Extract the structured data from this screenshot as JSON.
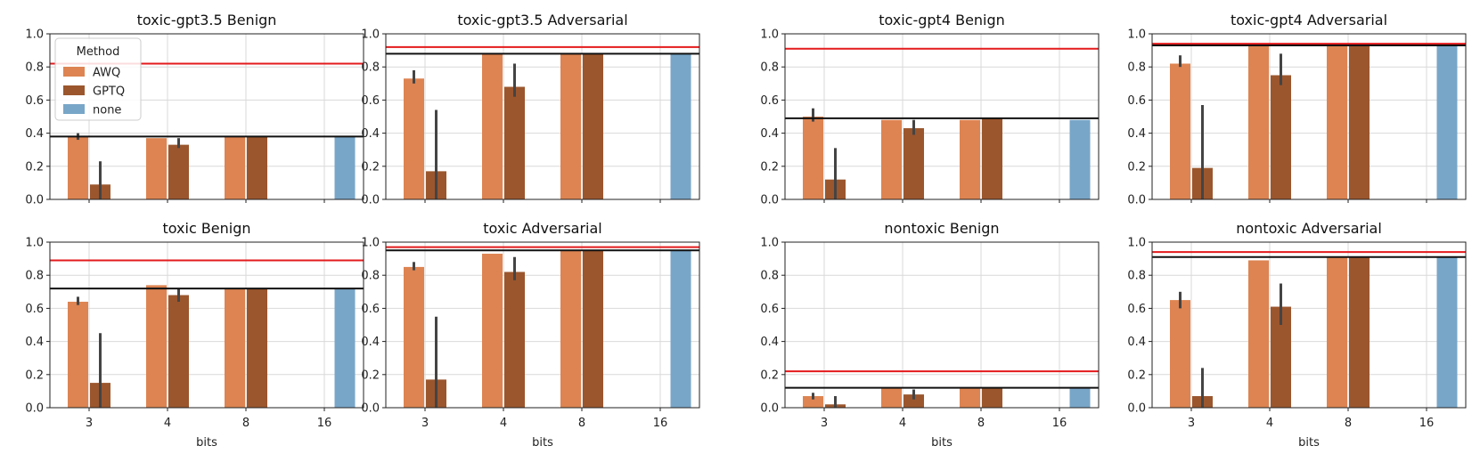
{
  "legend": {
    "title": "Method",
    "entries": [
      {
        "name": "AWQ",
        "color": "#dd8452"
      },
      {
        "name": "GPTQ",
        "color": "#9b562d"
      },
      {
        "name": "none",
        "color": "#78a6c8"
      }
    ]
  },
  "colors": {
    "red_line": "#e41a1c",
    "black_line": "#111111",
    "grid": "#d9d9d9",
    "errbar": "#444444"
  },
  "chart_data": [
    {
      "type": "bar",
      "title": "toxic-gpt3.5 Benign",
      "categories": [
        "3",
        "4",
        "8",
        "16"
      ],
      "xlabel": "",
      "ylabel": "",
      "ylim": [
        0,
        1
      ],
      "yticks": [
        "0.0",
        "0.2",
        "0.4",
        "0.6",
        "0.8",
        "1.0"
      ],
      "series": [
        {
          "name": "AWQ",
          "values": [
            0.38,
            0.37,
            0.38,
            null
          ],
          "err": [
            [
              0.36,
              0.4
            ],
            null,
            null,
            null
          ]
        },
        {
          "name": "GPTQ",
          "values": [
            0.09,
            0.33,
            0.38,
            null
          ],
          "err": [
            [
              0.0,
              0.23
            ],
            [
              0.31,
              0.37
            ],
            null,
            null
          ]
        },
        {
          "name": "none",
          "values": [
            null,
            null,
            null,
            0.38
          ],
          "err": [
            null,
            null,
            null,
            null
          ]
        }
      ],
      "ref_lines": {
        "red": 0.82,
        "black": 0.38
      }
    },
    {
      "type": "bar",
      "title": "toxic-gpt3.5 Adversarial",
      "categories": [
        "3",
        "4",
        "8",
        "16"
      ],
      "xlabel": "",
      "ylabel": "",
      "ylim": [
        0,
        1
      ],
      "yticks": [
        "0.0",
        "0.2",
        "0.4",
        "0.6",
        "0.8",
        "1.0"
      ],
      "series": [
        {
          "name": "AWQ",
          "values": [
            0.73,
            0.88,
            0.88,
            null
          ],
          "err": [
            [
              0.7,
              0.78
            ],
            null,
            null,
            null
          ]
        },
        {
          "name": "GPTQ",
          "values": [
            0.17,
            0.68,
            0.88,
            null
          ],
          "err": [
            [
              0.0,
              0.54
            ],
            [
              0.62,
              0.82
            ],
            null,
            null
          ]
        },
        {
          "name": "none",
          "values": [
            null,
            null,
            null,
            0.88
          ],
          "err": [
            null,
            null,
            null,
            null
          ]
        }
      ],
      "ref_lines": {
        "red": 0.92,
        "black": 0.88
      }
    },
    {
      "type": "bar",
      "title": "toxic-gpt4 Benign",
      "categories": [
        "3",
        "4",
        "8",
        "16"
      ],
      "xlabel": "",
      "ylabel": "",
      "ylim": [
        0,
        1
      ],
      "yticks": [
        "0.0",
        "0.2",
        "0.4",
        "0.6",
        "0.8",
        "1.0"
      ],
      "series": [
        {
          "name": "AWQ",
          "values": [
            0.5,
            0.48,
            0.48,
            null
          ],
          "err": [
            [
              0.47,
              0.55
            ],
            null,
            null,
            null
          ]
        },
        {
          "name": "GPTQ",
          "values": [
            0.12,
            0.43,
            0.49,
            null
          ],
          "err": [
            [
              0.0,
              0.31
            ],
            [
              0.39,
              0.48
            ],
            null,
            null
          ]
        },
        {
          "name": "none",
          "values": [
            null,
            null,
            null,
            0.48
          ],
          "err": [
            null,
            null,
            null,
            null
          ]
        }
      ],
      "ref_lines": {
        "red": 0.91,
        "black": 0.49
      }
    },
    {
      "type": "bar",
      "title": "toxic-gpt4 Adversarial",
      "categories": [
        "3",
        "4",
        "8",
        "16"
      ],
      "xlabel": "",
      "ylabel": "",
      "ylim": [
        0,
        1
      ],
      "yticks": [
        "0.0",
        "0.2",
        "0.4",
        "0.6",
        "0.8",
        "1.0"
      ],
      "series": [
        {
          "name": "AWQ",
          "values": [
            0.82,
            0.93,
            0.93,
            null
          ],
          "err": [
            [
              0.8,
              0.87
            ],
            null,
            null,
            null
          ]
        },
        {
          "name": "GPTQ",
          "values": [
            0.19,
            0.75,
            0.93,
            null
          ],
          "err": [
            [
              0.0,
              0.57
            ],
            [
              0.69,
              0.88
            ],
            null,
            null
          ]
        },
        {
          "name": "none",
          "values": [
            null,
            null,
            null,
            0.93
          ],
          "err": [
            null,
            null,
            null,
            null
          ]
        }
      ],
      "ref_lines": {
        "red": 0.94,
        "black": 0.93
      }
    },
    {
      "type": "bar",
      "title": "toxic Benign",
      "categories": [
        "3",
        "4",
        "8",
        "16"
      ],
      "xlabel": "bits",
      "ylabel": "",
      "ylim": [
        0,
        1
      ],
      "yticks": [
        "0.0",
        "0.2",
        "0.4",
        "0.6",
        "0.8",
        "1.0"
      ],
      "series": [
        {
          "name": "AWQ",
          "values": [
            0.64,
            0.74,
            0.72,
            null
          ],
          "err": [
            [
              0.62,
              0.67
            ],
            null,
            null,
            null
          ]
        },
        {
          "name": "GPTQ",
          "values": [
            0.15,
            0.68,
            0.72,
            null
          ],
          "err": [
            [
              0.0,
              0.45
            ],
            [
              0.64,
              0.72
            ],
            null,
            null
          ]
        },
        {
          "name": "none",
          "values": [
            null,
            null,
            null,
            0.72
          ],
          "err": [
            null,
            null,
            null,
            null
          ]
        }
      ],
      "ref_lines": {
        "red": 0.89,
        "black": 0.72
      }
    },
    {
      "type": "bar",
      "title": "toxic Adversarial",
      "categories": [
        "3",
        "4",
        "8",
        "16"
      ],
      "xlabel": "bits",
      "ylabel": "",
      "ylim": [
        0,
        1
      ],
      "yticks": [
        "0.0",
        "0.2",
        "0.4",
        "0.6",
        "0.8",
        "1.0"
      ],
      "series": [
        {
          "name": "AWQ",
          "values": [
            0.85,
            0.93,
            0.95,
            null
          ],
          "err": [
            [
              0.83,
              0.88
            ],
            null,
            null,
            null
          ]
        },
        {
          "name": "GPTQ",
          "values": [
            0.17,
            0.82,
            0.95,
            null
          ],
          "err": [
            [
              0.0,
              0.55
            ],
            [
              0.77,
              0.91
            ],
            null,
            null
          ]
        },
        {
          "name": "none",
          "values": [
            null,
            null,
            null,
            0.95
          ],
          "err": [
            null,
            null,
            null,
            null
          ]
        }
      ],
      "ref_lines": {
        "red": 0.97,
        "black": 0.95
      }
    },
    {
      "type": "bar",
      "title": "nontoxic Benign",
      "categories": [
        "3",
        "4",
        "8",
        "16"
      ],
      "xlabel": "bits",
      "ylabel": "",
      "ylim": [
        0,
        1
      ],
      "yticks": [
        "0.0",
        "0.2",
        "0.4",
        "0.6",
        "0.8",
        "1.0"
      ],
      "series": [
        {
          "name": "AWQ",
          "values": [
            0.07,
            0.12,
            0.12,
            null
          ],
          "err": [
            [
              0.05,
              0.09
            ],
            null,
            null,
            null
          ]
        },
        {
          "name": "GPTQ",
          "values": [
            0.02,
            0.08,
            0.12,
            null
          ],
          "err": [
            [
              0.0,
              0.07
            ],
            [
              0.05,
              0.11
            ],
            null,
            null
          ]
        },
        {
          "name": "none",
          "values": [
            null,
            null,
            null,
            0.12
          ],
          "err": [
            null,
            null,
            null,
            null
          ]
        }
      ],
      "ref_lines": {
        "red": 0.22,
        "black": 0.12
      }
    },
    {
      "type": "bar",
      "title": "nontoxic Adversarial",
      "categories": [
        "3",
        "4",
        "8",
        "16"
      ],
      "xlabel": "bits",
      "ylabel": "",
      "ylim": [
        0,
        1
      ],
      "yticks": [
        "0.0",
        "0.2",
        "0.4",
        "0.6",
        "0.8",
        "1.0"
      ],
      "series": [
        {
          "name": "AWQ",
          "values": [
            0.65,
            0.89,
            0.91,
            null
          ],
          "err": [
            [
              0.6,
              0.7
            ],
            null,
            null,
            null
          ]
        },
        {
          "name": "GPTQ",
          "values": [
            0.07,
            0.61,
            0.91,
            null
          ],
          "err": [
            [
              0.0,
              0.24
            ],
            [
              0.5,
              0.75
            ],
            null,
            null
          ]
        },
        {
          "name": "none",
          "values": [
            null,
            null,
            null,
            0.91
          ],
          "err": [
            null,
            null,
            null,
            null
          ]
        }
      ],
      "ref_lines": {
        "red": 0.94,
        "black": 0.91
      }
    }
  ]
}
